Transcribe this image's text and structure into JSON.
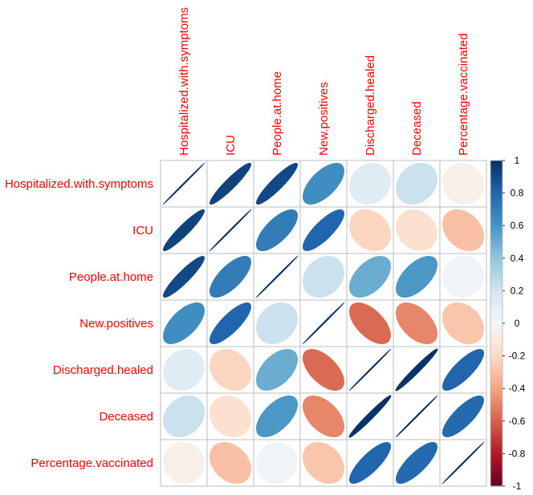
{
  "chart_data": {
    "type": "heatmap",
    "variables": [
      "Hospitalized.with.symptoms",
      "ICU",
      "People.at.home",
      "New.positives",
      "Discharged.healed",
      "Deceased",
      "Percentage.vaccinated"
    ],
    "matrix": [
      [
        1.0,
        0.93,
        0.91,
        0.62,
        0.12,
        0.22,
        -0.06
      ],
      [
        0.93,
        1.0,
        0.7,
        0.8,
        -0.22,
        -0.16,
        -0.3
      ],
      [
        0.91,
        0.7,
        1.0,
        0.22,
        0.5,
        0.58,
        0.03
      ],
      [
        0.62,
        0.8,
        0.22,
        1.0,
        -0.57,
        -0.49,
        -0.28
      ],
      [
        0.12,
        -0.22,
        0.5,
        -0.57,
        1.0,
        0.98,
        0.8
      ],
      [
        0.22,
        -0.16,
        0.58,
        -0.49,
        0.98,
        1.0,
        0.78
      ],
      [
        -0.06,
        -0.3,
        0.03,
        -0.28,
        0.8,
        0.78,
        1.0
      ]
    ],
    "colorbar_ticks": [
      "1",
      "0.8",
      "0.6",
      "0.4",
      "0.2",
      "0",
      "-0.2",
      "-0.4",
      "-0.6",
      "-0.8",
      "-1"
    ],
    "range": [
      -1,
      1
    ],
    "method": "ellipse",
    "label_color": "#ff0000",
    "grid_color": "#bebebe",
    "colors": {
      "negative_end": "#67001f",
      "neutral": "#f7f7f7",
      "positive_end": "#053061"
    }
  }
}
